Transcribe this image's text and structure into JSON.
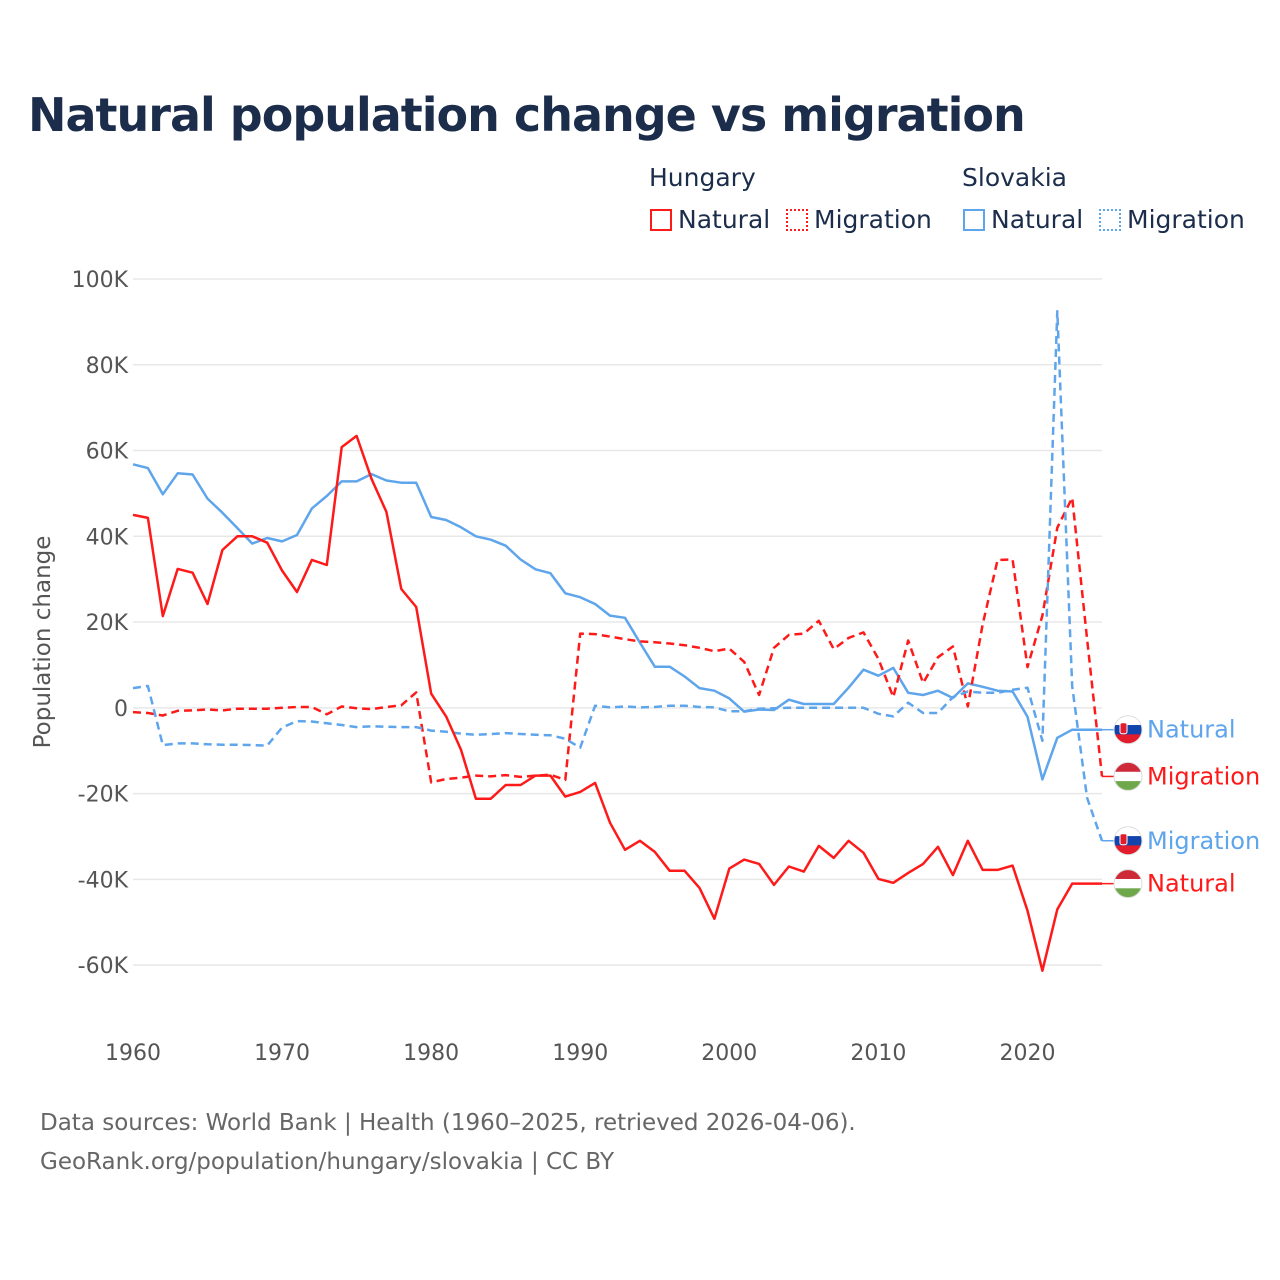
{
  "title": "Natural population change vs migration",
  "legend": {
    "groups": [
      {
        "name": "Hungary",
        "items": [
          "Natural",
          "Migration"
        ],
        "color": "#ff1a1a"
      },
      {
        "name": "Slovakia",
        "items": [
          "Natural",
          "Migration"
        ],
        "color": "#5ea5ec"
      }
    ]
  },
  "footer": {
    "line1": "Data sources: World Bank | Health (1960–2025, retrieved 2026-04-06).",
    "line2": "GeoRank.org/population/hungary/slovakia | CC BY"
  },
  "chart_data": {
    "type": "line",
    "title": "Natural population change vs migration",
    "xlabel": "",
    "ylabel": "Population change",
    "xlim": [
      1960,
      2025
    ],
    "ylim": [
      -70000,
      100000
    ],
    "x_ticks": [
      "1960",
      "1970",
      "1980",
      "1990",
      "2000",
      "2010",
      "2020"
    ],
    "y_ticks": [
      {
        "v": 100000,
        "label": "100K"
      },
      {
        "v": 80000,
        "label": "80K"
      },
      {
        "v": 60000,
        "label": "60K"
      },
      {
        "v": 40000,
        "label": "40K"
      },
      {
        "v": 20000,
        "label": "20K"
      },
      {
        "v": 0,
        "label": "0"
      },
      {
        "v": -20000,
        "label": "-20K"
      },
      {
        "v": -40000,
        "label": "-40K"
      },
      {
        "v": -60000,
        "label": "-60K"
      }
    ],
    "grid": true,
    "legend_placement": "top-right",
    "x_start": 1960,
    "series": [
      {
        "name": "Hungary Natural",
        "end_label": "Natural",
        "country": "Hungary",
        "color": "#ff1a1a",
        "dashed": false,
        "values_k": [
          45,
          44.3,
          21.4,
          32.4,
          31.5,
          24.2,
          36.8,
          40,
          40,
          38.5,
          32,
          27,
          34.5,
          33.3,
          60.8,
          63.4,
          53.4,
          45.7,
          27.7,
          23.5,
          3.3,
          -2,
          -9.8,
          -21.2,
          -21.2,
          -18,
          -18,
          -15.8,
          -15.8,
          -20.7,
          -19.6,
          -17.5,
          -26.8,
          -33.1,
          -31,
          -33.6,
          -38,
          -38,
          -42,
          -49.2,
          -37.5,
          -35.4,
          -36.4,
          -41.3,
          -37,
          -38.2,
          -32.2,
          -35,
          -31,
          -33.8,
          -39.9,
          -40.8,
          -38.5,
          -36.4,
          -32.4,
          -39,
          -31,
          -37.8,
          -37.8,
          -36.8,
          -47.3,
          -61.3,
          -47,
          -41,
          -41,
          -41
        ]
      },
      {
        "name": "Hungary Migration",
        "end_label": "Migration",
        "country": "Hungary",
        "color": "#ff1a1a",
        "dashed": true,
        "values_k": [
          -1,
          -1.2,
          -1.8,
          -0.7,
          -0.6,
          -0.4,
          -0.6,
          -0.2,
          -0.2,
          -0.2,
          0,
          0.2,
          0.2,
          -1.5,
          0.3,
          -0.1,
          -0.3,
          0.2,
          0.6,
          3.6,
          -17.4,
          -16.6,
          -16.3,
          -15.8,
          -16,
          -15.7,
          -16.1,
          -15.8,
          -15.6,
          -16.8,
          17.3,
          17.2,
          16.6,
          16,
          15.5,
          15.3,
          15,
          14.6,
          14,
          13.2,
          13.8,
          10.7,
          3,
          14,
          17,
          17.3,
          20.3,
          13.7,
          16.3,
          17.6,
          11.4,
          2.5,
          15.7,
          5.8,
          11.8,
          14.3,
          0.3,
          19.5,
          34.5,
          34.6,
          9.5,
          21.5,
          42,
          49,
          16,
          -16
        ]
      },
      {
        "name": "Slovakia Natural",
        "end_label": "Natural",
        "country": "Slovakia",
        "color": "#5ea5ec",
        "dashed": false,
        "values_k": [
          56.8,
          55.9,
          49.8,
          54.7,
          54.4,
          48.8,
          45.5,
          41.9,
          38.3,
          39.6,
          38.8,
          40.3,
          46.5,
          49.4,
          52.8,
          52.8,
          54.5,
          53,
          52.5,
          52.5,
          44.5,
          43.8,
          42.1,
          40,
          39.2,
          37.8,
          34.6,
          32.3,
          31.4,
          26.7,
          25.8,
          24.2,
          21.5,
          21,
          15.2,
          9.6,
          9.6,
          7.3,
          4.6,
          4,
          2.2,
          -0.9,
          -0.4,
          -0.5,
          1.9,
          0.9,
          0.9,
          0.9,
          4.7,
          8.9,
          7.5,
          9.3,
          3.5,
          3,
          4,
          2.3,
          5.7,
          4.9,
          4,
          3.8,
          -2.1,
          -16.7,
          -7,
          -5.1,
          -5.1,
          -5.1
        ]
      },
      {
        "name": "Slovakia Migration",
        "end_label": "Migration",
        "country": "Slovakia",
        "color": "#5ea5ec",
        "dashed": true,
        "values_k": [
          4.6,
          5.1,
          -8.7,
          -8.3,
          -8.3,
          -8.5,
          -8.6,
          -8.6,
          -8.7,
          -8.8,
          -4.6,
          -3.1,
          -3.2,
          -3.6,
          -4,
          -4.5,
          -4.3,
          -4.4,
          -4.5,
          -4.5,
          -5.3,
          -5.6,
          -6,
          -6.3,
          -6.1,
          -5.9,
          -6.1,
          -6.3,
          -6.4,
          -7.2,
          -9.3,
          0.5,
          0.1,
          0.3,
          0.1,
          0.2,
          0.5,
          0.5,
          0.2,
          0.1,
          -0.8,
          -0.8,
          -0.2,
          -0.1,
          0,
          0,
          0,
          0,
          0,
          0,
          -1.4,
          -2,
          1.2,
          -1.2,
          -1.2,
          2.5,
          3.8,
          3.5,
          3.5,
          4.2,
          4.7,
          -7.7,
          92.5,
          5,
          -21,
          -31
        ]
      }
    ]
  }
}
